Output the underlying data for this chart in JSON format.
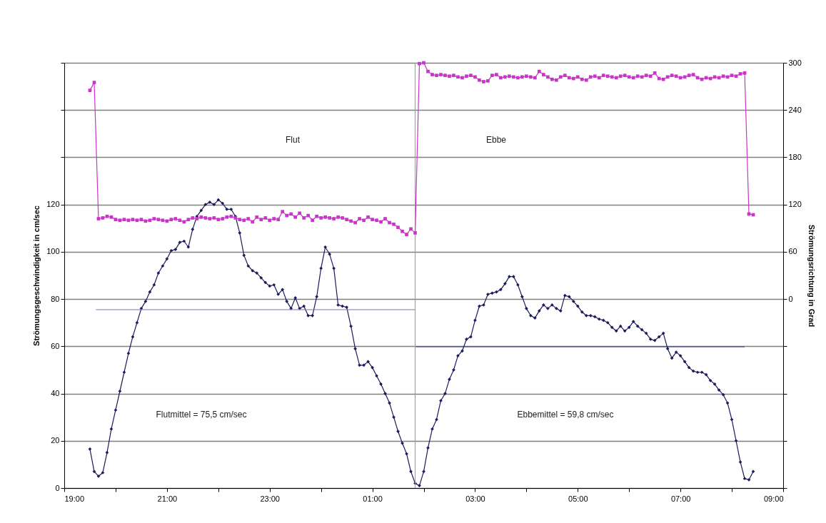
{
  "chart_data": {
    "type": "line",
    "ylabel": "Strömungsgeschwindigkeit in cm/sec",
    "y2label": "Strömungsrichtung in Grad",
    "annotations": [
      "Flut",
      "Ebbe",
      "Flutmittel = 75,5 cm/sec",
      "Ebbemittel = 59,8 cm/sec"
    ],
    "x": [
      "2000-01-01T19:30",
      "2000-01-01T19:35",
      "2000-01-01T19:40",
      "2000-01-01T19:45",
      "2000-01-01T19:50",
      "2000-01-01T19:55",
      "2000-01-01T20:00",
      "2000-01-01T20:05",
      "2000-01-01T20:10",
      "2000-01-01T20:15",
      "2000-01-01T20:20",
      "2000-01-01T20:25",
      "2000-01-01T20:30",
      "2000-01-01T20:35",
      "2000-01-01T20:40",
      "2000-01-01T20:45",
      "2000-01-01T20:50",
      "2000-01-01T20:55",
      "2000-01-01T21:00",
      "2000-01-01T21:05",
      "2000-01-01T21:10",
      "2000-01-01T21:15",
      "2000-01-01T21:20",
      "2000-01-01T21:25",
      "2000-01-01T21:30",
      "2000-01-01T21:35",
      "2000-01-01T21:40",
      "2000-01-01T21:45",
      "2000-01-01T21:50",
      "2000-01-01T21:55",
      "2000-01-01T22:00",
      "2000-01-01T22:05",
      "2000-01-01T22:10",
      "2000-01-01T22:15",
      "2000-01-01T22:20",
      "2000-01-01T22:25",
      "2000-01-01T22:30",
      "2000-01-01T22:35",
      "2000-01-01T22:40",
      "2000-01-01T22:45",
      "2000-01-01T22:50",
      "2000-01-01T22:55",
      "2000-01-01T23:00",
      "2000-01-01T23:05",
      "2000-01-01T23:10",
      "2000-01-01T23:15",
      "2000-01-01T23:20",
      "2000-01-01T23:25",
      "2000-01-01T23:30",
      "2000-01-01T23:35",
      "2000-01-01T23:40",
      "2000-01-01T23:45",
      "2000-01-01T23:50",
      "2000-01-01T23:55",
      "2000-01-02T00:00",
      "2000-01-02T00:05",
      "2000-01-02T00:10",
      "2000-01-02T00:15",
      "2000-01-02T00:20",
      "2000-01-02T00:25",
      "2000-01-02T00:30",
      "2000-01-02T00:35",
      "2000-01-02T00:40",
      "2000-01-02T00:45",
      "2000-01-02T00:50",
      "2000-01-02T00:55",
      "2000-01-02T01:00",
      "2000-01-02T01:05",
      "2000-01-02T01:10",
      "2000-01-02T01:15",
      "2000-01-02T01:20",
      "2000-01-02T01:25",
      "2000-01-02T01:30",
      "2000-01-02T01:35",
      "2000-01-02T01:40",
      "2000-01-02T01:45",
      "2000-01-02T01:50",
      "2000-01-02T01:55",
      "2000-01-02T02:00",
      "2000-01-02T02:05",
      "2000-01-02T02:10",
      "2000-01-02T02:15",
      "2000-01-02T02:20",
      "2000-01-02T02:25",
      "2000-01-02T02:30",
      "2000-01-02T02:35",
      "2000-01-02T02:40",
      "2000-01-02T02:45",
      "2000-01-02T02:50",
      "2000-01-02T02:55",
      "2000-01-02T03:00",
      "2000-01-02T03:05",
      "2000-01-02T03:10",
      "2000-01-02T03:15",
      "2000-01-02T03:20",
      "2000-01-02T03:25",
      "2000-01-02T03:30",
      "2000-01-02T03:35",
      "2000-01-02T03:40",
      "2000-01-02T03:45",
      "2000-01-02T03:50",
      "2000-01-02T03:55",
      "2000-01-02T04:00",
      "2000-01-02T04:05",
      "2000-01-02T04:10",
      "2000-01-02T04:15",
      "2000-01-02T04:20",
      "2000-01-02T04:25",
      "2000-01-02T04:30",
      "2000-01-02T04:35",
      "2000-01-02T04:40",
      "2000-01-02T04:45",
      "2000-01-02T04:50",
      "2000-01-02T04:55",
      "2000-01-02T05:00",
      "2000-01-02T05:05",
      "2000-01-02T05:10",
      "2000-01-02T05:15",
      "2000-01-02T05:20",
      "2000-01-02T05:25",
      "2000-01-02T05:30",
      "2000-01-02T05:35",
      "2000-01-02T05:40",
      "2000-01-02T05:45",
      "2000-01-02T05:50",
      "2000-01-02T05:55",
      "2000-01-02T06:00",
      "2000-01-02T06:05",
      "2000-01-02T06:10",
      "2000-01-02T06:15",
      "2000-01-02T06:20",
      "2000-01-02T06:25",
      "2000-01-02T06:30",
      "2000-01-02T06:35",
      "2000-01-02T06:40",
      "2000-01-02T06:45",
      "2000-01-02T06:50",
      "2000-01-02T06:55",
      "2000-01-02T07:00",
      "2000-01-02T07:05",
      "2000-01-02T07:10",
      "2000-01-02T07:15",
      "2000-01-02T07:20",
      "2000-01-02T07:25",
      "2000-01-02T07:30",
      "2000-01-02T07:35",
      "2000-01-02T07:40",
      "2000-01-02T07:45",
      "2000-01-02T07:50",
      "2000-01-02T07:55",
      "2000-01-02T08:00",
      "2000-01-02T08:05",
      "2000-01-02T08:10",
      "2000-01-02T08:15",
      "2000-01-02T08:20",
      "2000-01-02T08:25"
    ],
    "series": [
      {
        "color": "#1c1c5c",
        "marker": "diamond",
        "values": [
          16.5,
          7,
          5,
          6.5,
          15,
          25,
          33,
          41,
          49,
          57,
          64,
          70,
          76,
          79,
          83,
          86,
          91,
          94,
          97,
          100.5,
          101,
          104,
          104.5,
          102,
          109.5,
          115,
          117.5,
          120,
          121,
          120,
          122,
          120.5,
          118,
          118,
          115,
          108,
          98.5,
          94,
          92,
          91,
          89,
          87,
          85.5,
          86,
          82,
          84,
          79,
          76,
          80.5,
          76,
          77,
          73,
          73,
          81,
          93,
          102,
          99,
          93,
          77.5,
          77,
          76.5,
          68.5,
          59,
          52,
          52,
          53.5,
          51,
          47.5,
          44,
          40,
          36,
          30,
          24,
          19,
          14.5,
          7,
          2,
          1,
          7,
          17,
          25,
          29,
          37,
          40,
          46,
          50,
          56,
          58,
          63,
          64,
          71,
          77,
          77.5,
          82,
          82.5,
          83,
          84,
          86.5,
          89.5,
          89.5,
          86,
          81,
          76,
          73,
          72,
          75,
          77.5,
          76,
          77.5,
          76,
          75,
          81.5,
          81,
          79,
          77,
          74.5,
          73,
          73,
          72.5,
          71.5,
          71,
          70,
          68,
          66.5,
          68.5,
          66.5,
          68,
          70.5,
          68.5,
          67,
          65.5,
          63,
          62.5,
          64,
          65.5,
          59,
          55,
          57.5,
          56,
          53.5,
          51,
          49.5,
          49,
          49,
          48,
          45.5,
          44,
          41.5,
          39.5,
          36,
          29,
          20,
          11,
          4,
          3.5,
          7
        ]
      },
      {
        "axis": "y2",
        "color": "#cc33cc",
        "marker": "square",
        "values": [
          265,
          275,
          102,
          103,
          105,
          104,
          101,
          100,
          101,
          100,
          101,
          100,
          101,
          99,
          100,
          102,
          101,
          100,
          99,
          101,
          102,
          100,
          98,
          101,
          103,
          102,
          104,
          103,
          102,
          103,
          101,
          102,
          104,
          105,
          103,
          101,
          100,
          102,
          98,
          104,
          101,
          103,
          100,
          102,
          101,
          111,
          106,
          108,
          104,
          109,
          103,
          106,
          100,
          105,
          103,
          104,
          103,
          102,
          104,
          103,
          101,
          99,
          97,
          102,
          100,
          104,
          101,
          100,
          98,
          102,
          97,
          95,
          91,
          86,
          82,
          89,
          84,
          299,
          300,
          289,
          285,
          284,
          285,
          284,
          283,
          284,
          282,
          281,
          283,
          284,
          282,
          278,
          276,
          277,
          284,
          285,
          281,
          282,
          283,
          282,
          281,
          282,
          283,
          282,
          281,
          289,
          285,
          282,
          279,
          278,
          282,
          284,
          281,
          280,
          282,
          279,
          278,
          282,
          283,
          281,
          284,
          283,
          282,
          281,
          283,
          284,
          282,
          281,
          283,
          282,
          284,
          283,
          287,
          280,
          279,
          282,
          284,
          283,
          281,
          282,
          284,
          285,
          281,
          279,
          281,
          280,
          282,
          281,
          283,
          282,
          284,
          283,
          286,
          287,
          108,
          107
        ]
      },
      {
        "color": "#7777aa",
        "marker": "none",
        "x": [
          "2000-01-01T19:37",
          "2000-01-02T01:50"
        ],
        "values": [
          75.5,
          75.5
        ]
      },
      {
        "color": "#33338a",
        "marker": "none",
        "x": [
          "2000-01-02T01:51",
          "2000-01-02T08:15"
        ],
        "values": [
          59.8,
          59.8
        ]
      }
    ],
    "ref_lines": [
      {
        "axis": "x",
        "value": "2000-01-02T01:50",
        "color": "#999999"
      }
    ],
    "xlim": [
      "2000-01-01T19:00",
      "2000-01-02T09:00"
    ],
    "xticks": [
      {
        "value": "2000-01-01T19:00",
        "label": "19:00"
      },
      {
        "value": "2000-01-01T20:00",
        "label": null
      },
      {
        "value": "2000-01-01T21:00",
        "label": "21:00"
      },
      {
        "value": "2000-01-01T22:00",
        "label": null
      },
      {
        "value": "2000-01-01T23:00",
        "label": "23:00"
      },
      {
        "value": "2000-01-02T00:00",
        "label": null
      },
      {
        "value": "2000-01-02T01:00",
        "label": "01:00"
      },
      {
        "value": "2000-01-02T02:00",
        "label": null
      },
      {
        "value": "2000-01-02T03:00",
        "label": "03:00"
      },
      {
        "value": "2000-01-02T04:00",
        "label": null
      },
      {
        "value": "2000-01-02T05:00",
        "label": "05:00"
      },
      {
        "value": "2000-01-02T06:00",
        "label": null
      },
      {
        "value": "2000-01-02T07:00",
        "label": "07:00"
      },
      {
        "value": "2000-01-02T08:00",
        "label": null
      },
      {
        "value": "2000-01-02T09:00",
        "label": "09:00"
      }
    ],
    "ylim": [
      0,
      180
    ],
    "yticks": [
      0,
      20,
      40,
      60,
      80,
      100,
      120,
      {
        "value": 140,
        "label": null
      },
      {
        "value": 160,
        "label": null
      },
      {
        "value": 180,
        "label": null
      }
    ],
    "y2lim": [
      -240,
      300
    ],
    "y2ticks": [
      {
        "value": -240,
        "label": null
      },
      {
        "value": -180,
        "label": null
      },
      {
        "value": -120,
        "label": null
      },
      {
        "value": -60,
        "label": null
      },
      0,
      60,
      120,
      180,
      240,
      300
    ],
    "grid": "y"
  }
}
